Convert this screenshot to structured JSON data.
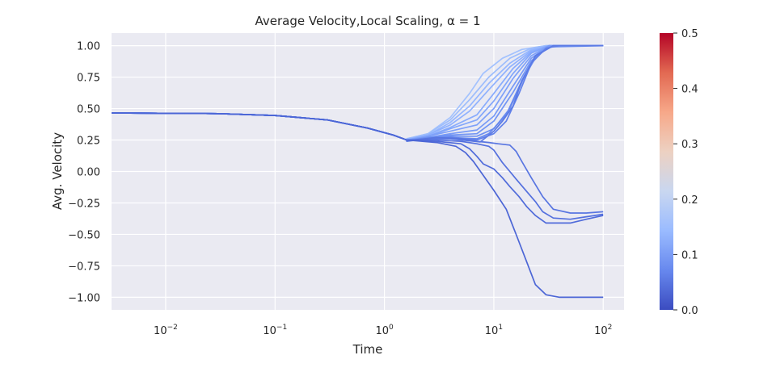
{
  "chart_data": {
    "type": "line",
    "title": "Average Velocity,Local Scaling, α = 1",
    "xlabel": "Time",
    "ylabel": "Avg. Velocity",
    "xscale": "log",
    "xlim": [
      0.0032,
      155
    ],
    "ylim": [
      -1.1,
      1.1
    ],
    "xticks": [
      {
        "value": 0.01,
        "base": "10",
        "exp": "−2"
      },
      {
        "value": 0.1,
        "base": "10",
        "exp": "−1"
      },
      {
        "value": 1,
        "base": "10",
        "exp": "0"
      },
      {
        "value": 10,
        "base": "10",
        "exp": "1"
      },
      {
        "value": 100,
        "base": "10",
        "exp": "2"
      }
    ],
    "yticks": [
      "1.00",
      "0.75",
      "0.50",
      "0.25",
      "0.00",
      "−0.25",
      "−0.50",
      "−0.75",
      "−1.00"
    ],
    "ytick_values": [
      1.0,
      0.75,
      0.5,
      0.25,
      0.0,
      -0.25,
      -0.5,
      -0.75,
      -1.0
    ],
    "grid": true,
    "background": "#eaeaf2",
    "colorbar": {
      "colormap": "coolwarm",
      "range": [
        0.0,
        0.5
      ],
      "ticks": [
        "0.0",
        "0.1",
        "0.2",
        "0.3",
        "0.4",
        "0.5"
      ],
      "tick_values": [
        0.0,
        0.1,
        0.2,
        0.3,
        0.4,
        0.5
      ],
      "colors": [
        "#3b4cc0",
        "#6788ee",
        "#9abbff",
        "#c9d7f0",
        "#edd1c2",
        "#f7a889",
        "#e26952",
        "#b40426"
      ]
    },
    "common_start": [
      [
        0.0032,
        0.465
      ],
      [
        0.03,
        0.46
      ],
      [
        0.1,
        0.445
      ],
      [
        0.3,
        0.41
      ],
      [
        0.7,
        0.345
      ],
      [
        1.2,
        0.29
      ],
      [
        1.6,
        0.25
      ]
    ],
    "series": [
      {
        "color": "#a3c2fe",
        "points": [
          [
            1.6,
            0.26
          ],
          [
            2.5,
            0.3
          ],
          [
            4,
            0.43
          ],
          [
            6,
            0.62
          ],
          [
            8,
            0.78
          ],
          [
            12,
            0.9
          ],
          [
            18,
            0.97
          ],
          [
            30,
            1.0
          ],
          [
            100,
            1.0
          ]
        ]
      },
      {
        "color": "#9dbdfc",
        "points": [
          [
            1.6,
            0.26
          ],
          [
            2.5,
            0.3
          ],
          [
            4,
            0.41
          ],
          [
            6,
            0.57
          ],
          [
            9,
            0.75
          ],
          [
            14,
            0.9
          ],
          [
            22,
            0.98
          ],
          [
            30,
            1.0
          ],
          [
            100,
            1.0
          ]
        ]
      },
      {
        "color": "#96b7ff",
        "points": [
          [
            1.6,
            0.255
          ],
          [
            2.5,
            0.29
          ],
          [
            4,
            0.39
          ],
          [
            6,
            0.52
          ],
          [
            9,
            0.7
          ],
          [
            14,
            0.86
          ],
          [
            22,
            0.97
          ],
          [
            32,
            1.0
          ],
          [
            100,
            1.0
          ]
        ]
      },
      {
        "color": "#8fb1fe",
        "points": [
          [
            1.6,
            0.255
          ],
          [
            2.5,
            0.29
          ],
          [
            4,
            0.37
          ],
          [
            6,
            0.48
          ],
          [
            9,
            0.65
          ],
          [
            14,
            0.83
          ],
          [
            22,
            0.96
          ],
          [
            32,
            1.0
          ],
          [
            100,
            1.0
          ]
        ]
      },
      {
        "color": "#89acfd",
        "points": [
          [
            1.6,
            0.25
          ],
          [
            2.5,
            0.28
          ],
          [
            4,
            0.35
          ],
          [
            7,
            0.45
          ],
          [
            10,
            0.62
          ],
          [
            15,
            0.82
          ],
          [
            22,
            0.95
          ],
          [
            32,
            1.0
          ],
          [
            100,
            1.0
          ]
        ]
      },
      {
        "color": "#82a6fb",
        "points": [
          [
            1.6,
            0.25
          ],
          [
            2.5,
            0.28
          ],
          [
            4,
            0.34
          ],
          [
            7,
            0.41
          ],
          [
            10,
            0.56
          ],
          [
            15,
            0.78
          ],
          [
            22,
            0.94
          ],
          [
            32,
            1.0
          ],
          [
            100,
            1.0
          ]
        ]
      },
      {
        "color": "#7da0f9",
        "points": [
          [
            1.6,
            0.25
          ],
          [
            2.5,
            0.28
          ],
          [
            4,
            0.32
          ],
          [
            7,
            0.37
          ],
          [
            10,
            0.5
          ],
          [
            15,
            0.74
          ],
          [
            22,
            0.92
          ],
          [
            32,
            1.0
          ],
          [
            100,
            1.0
          ]
        ]
      },
      {
        "color": "#779af7",
        "points": [
          [
            1.6,
            0.25
          ],
          [
            2.5,
            0.27
          ],
          [
            4,
            0.3
          ],
          [
            7,
            0.33
          ],
          [
            10,
            0.44
          ],
          [
            15,
            0.68
          ],
          [
            22,
            0.9
          ],
          [
            32,
            1.0
          ],
          [
            100,
            1.0
          ]
        ]
      },
      {
        "color": "#7295f4",
        "points": [
          [
            1.6,
            0.245
          ],
          [
            2.5,
            0.27
          ],
          [
            4,
            0.29
          ],
          [
            7,
            0.3
          ],
          [
            10,
            0.4
          ],
          [
            15,
            0.63
          ],
          [
            22,
            0.88
          ],
          [
            32,
            0.99
          ],
          [
            100,
            1.0
          ]
        ]
      },
      {
        "color": "#6c8ff1",
        "points": [
          [
            1.6,
            0.245
          ],
          [
            2.5,
            0.27
          ],
          [
            4,
            0.28
          ],
          [
            7,
            0.28
          ],
          [
            10,
            0.34
          ],
          [
            14,
            0.5
          ],
          [
            19,
            0.75
          ],
          [
            25,
            0.93
          ],
          [
            35,
            1.0
          ],
          [
            100,
            1.0
          ]
        ]
      },
      {
        "color": "#6687ed",
        "points": [
          [
            1.6,
            0.245
          ],
          [
            2.5,
            0.26
          ],
          [
            4,
            0.27
          ],
          [
            7,
            0.26
          ],
          [
            9,
            0.3
          ],
          [
            13,
            0.45
          ],
          [
            18,
            0.72
          ],
          [
            24,
            0.92
          ],
          [
            35,
            1.0
          ],
          [
            100,
            1.0
          ]
        ]
      },
      {
        "color": "#6180e9",
        "points": [
          [
            1.6,
            0.245
          ],
          [
            2.5,
            0.26
          ],
          [
            4,
            0.27
          ],
          [
            7,
            0.25
          ],
          [
            10,
            0.3
          ],
          [
            13,
            0.4
          ],
          [
            17,
            0.62
          ],
          [
            22,
            0.86
          ],
          [
            30,
            0.98
          ],
          [
            40,
            1.0
          ],
          [
            100,
            1.0
          ]
        ]
      },
      {
        "color": "#5b7ae5",
        "points": [
          [
            1.6,
            0.24
          ],
          [
            2.5,
            0.26
          ],
          [
            4,
            0.26
          ],
          [
            7.5,
            0.235
          ],
          [
            10,
            0.32
          ],
          [
            12,
            0.4
          ],
          [
            15,
            0.52
          ],
          [
            18,
            0.72
          ],
          [
            24,
            0.92
          ],
          [
            35,
            1.0
          ],
          [
            100,
            1.0
          ]
        ]
      },
      {
        "color": "#5875e1",
        "points": [
          [
            1.6,
            0.245
          ],
          [
            3,
            0.27
          ],
          [
            5,
            0.26
          ],
          [
            7,
            0.24
          ],
          [
            9,
            0.23
          ],
          [
            11,
            0.22
          ],
          [
            14,
            0.21
          ],
          [
            16,
            0.16
          ],
          [
            18,
            0.08
          ],
          [
            22,
            -0.05
          ],
          [
            28,
            -0.2
          ],
          [
            35,
            -0.3
          ],
          [
            50,
            -0.33
          ],
          [
            70,
            -0.33
          ],
          [
            100,
            -0.32
          ]
        ]
      },
      {
        "color": "#5470de",
        "points": [
          [
            1.6,
            0.25
          ],
          [
            3,
            0.25
          ],
          [
            5,
            0.24
          ],
          [
            7,
            0.22
          ],
          [
            9,
            0.2
          ],
          [
            10,
            0.17
          ],
          [
            12,
            0.07
          ],
          [
            14,
            0.0
          ],
          [
            16,
            -0.06
          ],
          [
            20,
            -0.16
          ],
          [
            24,
            -0.24
          ],
          [
            28,
            -0.32
          ],
          [
            35,
            -0.37
          ],
          [
            50,
            -0.38
          ],
          [
            70,
            -0.36
          ],
          [
            100,
            -0.34
          ]
        ]
      },
      {
        "color": "#506bda",
        "points": [
          [
            1.6,
            0.25
          ],
          [
            3,
            0.24
          ],
          [
            5,
            0.22
          ],
          [
            6,
            0.18
          ],
          [
            7,
            0.12
          ],
          [
            8,
            0.06
          ],
          [
            10,
            0.02
          ],
          [
            12,
            -0.05
          ],
          [
            14,
            -0.12
          ],
          [
            17,
            -0.2
          ],
          [
            20,
            -0.28
          ],
          [
            24,
            -0.35
          ],
          [
            30,
            -0.41
          ],
          [
            50,
            -0.41
          ],
          [
            70,
            -0.38
          ],
          [
            100,
            -0.35
          ]
        ]
      },
      {
        "color": "#4c66d6",
        "points": [
          [
            1.6,
            0.25
          ],
          [
            3,
            0.23
          ],
          [
            4.5,
            0.2
          ],
          [
            5.5,
            0.15
          ],
          [
            6.5,
            0.08
          ],
          [
            8,
            -0.03
          ],
          [
            10,
            -0.15
          ],
          [
            13,
            -0.3
          ],
          [
            16,
            -0.5
          ],
          [
            20,
            -0.72
          ],
          [
            24,
            -0.9
          ],
          [
            30,
            -0.98
          ],
          [
            40,
            -1.0
          ],
          [
            100,
            -1.0
          ]
        ]
      }
    ]
  }
}
